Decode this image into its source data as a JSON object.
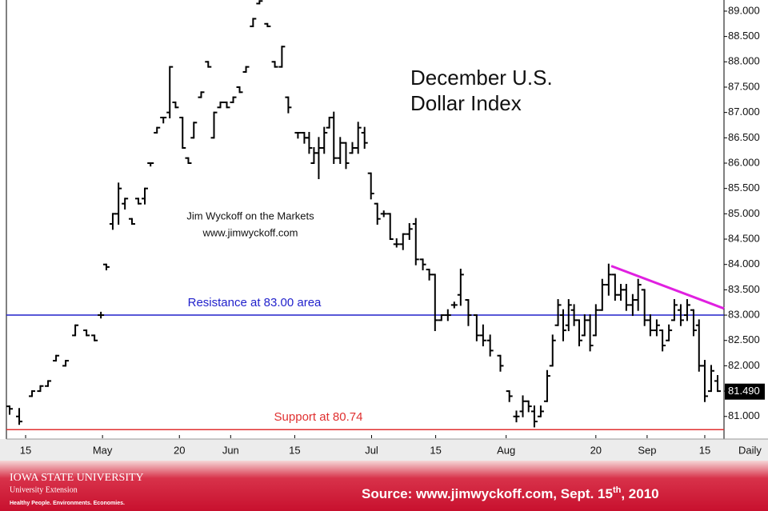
{
  "chart_data": {
    "type": "ohlc",
    "title": [
      "December U.S.",
      "Dollar Index"
    ],
    "watermark": [
      "Jim Wyckoff on the Markets",
      "www.jimwyckoff.com"
    ],
    "x_axis_label": "Daily",
    "xlim": [
      0,
      112
    ],
    "xticks": [
      {
        "value": 3,
        "label": "15"
      },
      {
        "value": 15,
        "label": "May"
      },
      {
        "value": 27,
        "label": "20"
      },
      {
        "value": 35,
        "label": "Jun"
      },
      {
        "value": 45,
        "label": "15"
      },
      {
        "value": 57,
        "label": "Jul"
      },
      {
        "value": 67,
        "label": "15"
      },
      {
        "value": 78,
        "label": "Aug"
      },
      {
        "value": 92,
        "label": "20"
      },
      {
        "value": 100,
        "label": "Sep"
      },
      {
        "value": 109,
        "label": "15"
      }
    ],
    "ylim": [
      80.57,
      89.22
    ],
    "yticks": [
      {
        "value": 81,
        "label": "81.000"
      },
      {
        "value": 81.5,
        "label": "81.500"
      },
      {
        "value": 82,
        "label": "82.000"
      },
      {
        "value": 82.5,
        "label": "82.500"
      },
      {
        "value": 83,
        "label": "83.000"
      },
      {
        "value": 83.5,
        "label": "83.500"
      },
      {
        "value": 84,
        "label": "84.000"
      },
      {
        "value": 84.5,
        "label": "84.500"
      },
      {
        "value": 85,
        "label": "85.000"
      },
      {
        "value": 85.5,
        "label": "85.500"
      },
      {
        "value": 86,
        "label": "86.000"
      },
      {
        "value": 86.5,
        "label": "86.500"
      },
      {
        "value": 87,
        "label": "87.000"
      },
      {
        "value": 87.5,
        "label": "87.500"
      },
      {
        "value": 88,
        "label": "88.000"
      },
      {
        "value": 88.5,
        "label": "88.500"
      },
      {
        "value": 89,
        "label": "89.000"
      }
    ],
    "last_price": {
      "value": 81.49,
      "label": "81.490"
    },
    "color": "#000000",
    "resistance": {
      "value": 83.0,
      "label": "Resistance at 83.00 area",
      "color": "#2222cc"
    },
    "support": {
      "value": 80.74,
      "label": "Support at 80.74",
      "color": "#e03030"
    },
    "trendline": {
      "x": [
        94.4,
        112
      ],
      "y": [
        83.97,
        83.13
      ],
      "color": "#e020e0"
    },
    "bars": [
      {
        "x": 0.5,
        "high": 81.2,
        "low": 81.05,
        "open": 81.2,
        "close": 81.15
      },
      {
        "x": 2,
        "high": 81.15,
        "low": 80.85,
        "open": 81.0,
        "close": 80.9
      },
      {
        "x": 4,
        "high": 81.5,
        "low": 81.4,
        "open": 81.4,
        "close": 81.5
      },
      {
        "x": 5.3,
        "high": 81.6,
        "low": 81.5,
        "open": 81.5,
        "close": 81.6
      },
      {
        "x": 6.5,
        "high": 81.7,
        "low": 81.6,
        "open": 81.6,
        "close": 81.7
      },
      {
        "x": 7.75,
        "high": 82.2,
        "low": 82.1,
        "open": 82.1,
        "close": 82.2
      },
      {
        "x": 9.25,
        "high": 82.1,
        "low": 82.0,
        "open": 82.0,
        "close": 82.1
      },
      {
        "x": 10.75,
        "high": 82.8,
        "low": 82.6,
        "open": 82.6,
        "close": 82.8
      },
      {
        "x": 12.5,
        "high": 82.7,
        "low": 82.6,
        "open": 82.7,
        "close": 82.6
      },
      {
        "x": 13.75,
        "high": 82.6,
        "low": 82.5,
        "open": 82.6,
        "close": 82.5
      },
      {
        "x": 14.75,
        "high": 83.05,
        "low": 82.95,
        "open": 83.0,
        "close": 83.0
      },
      {
        "x": 15.6,
        "high": 84.0,
        "low": 83.9,
        "open": 84.0,
        "close": 83.95
      },
      {
        "x": 16.6,
        "high": 85.0,
        "low": 84.7,
        "open": 84.8,
        "close": 85.0
      },
      {
        "x": 17.5,
        "high": 85.6,
        "low": 84.8,
        "open": 85.0,
        "close": 85.5
      },
      {
        "x": 18.5,
        "high": 85.3,
        "low": 85.1,
        "open": 85.2,
        "close": 85.3
      },
      {
        "x": 19.6,
        "high": 84.9,
        "low": 84.8,
        "open": 84.9,
        "close": 84.8
      },
      {
        "x": 20.6,
        "high": 85.3,
        "low": 85.2,
        "open": 85.3,
        "close": 85.2
      },
      {
        "x": 21.6,
        "high": 85.5,
        "low": 85.2,
        "open": 85.3,
        "close": 85.5
      },
      {
        "x": 22.5,
        "high": 86.0,
        "low": 85.95,
        "open": 86.0,
        "close": 86.0
      },
      {
        "x": 23.5,
        "high": 86.7,
        "low": 86.6,
        "open": 86.6,
        "close": 86.7
      },
      {
        "x": 24.5,
        "high": 86.9,
        "low": 86.8,
        "open": 86.9,
        "close": 86.9
      },
      {
        "x": 25.5,
        "high": 87.9,
        "low": 86.9,
        "open": 87.0,
        "close": 87.9
      },
      {
        "x": 26.4,
        "high": 87.2,
        "low": 87.1,
        "open": 87.2,
        "close": 87.1
      },
      {
        "x": 27.5,
        "high": 86.9,
        "low": 86.3,
        "open": 86.9,
        "close": 86.3
      },
      {
        "x": 28.4,
        "high": 86.1,
        "low": 86.0,
        "open": 86.1,
        "close": 86.0
      },
      {
        "x": 29.25,
        "high": 86.8,
        "low": 86.5,
        "open": 86.5,
        "close": 86.8
      },
      {
        "x": 30.4,
        "high": 87.4,
        "low": 87.3,
        "open": 87.3,
        "close": 87.4
      },
      {
        "x": 31.5,
        "high": 88.0,
        "low": 87.9,
        "open": 88.0,
        "close": 87.9
      },
      {
        "x": 32.4,
        "high": 87.0,
        "low": 86.5,
        "open": 86.5,
        "close": 87.0
      },
      {
        "x": 33.4,
        "high": 87.2,
        "low": 87.1,
        "open": 87.1,
        "close": 87.2
      },
      {
        "x": 34.4,
        "high": 87.2,
        "low": 87.1,
        "open": 87.2,
        "close": 87.1
      },
      {
        "x": 35.4,
        "high": 87.3,
        "low": 87.2,
        "open": 87.2,
        "close": 87.3
      },
      {
        "x": 36.4,
        "high": 87.5,
        "low": 87.4,
        "open": 87.5,
        "close": 87.4
      },
      {
        "x": 37.4,
        "high": 87.9,
        "low": 87.8,
        "open": 87.8,
        "close": 87.9
      },
      {
        "x": 38.5,
        "high": 88.85,
        "low": 88.7,
        "open": 88.7,
        "close": 88.85
      },
      {
        "x": 39.5,
        "high": 89.2,
        "low": 89.15,
        "open": 89.15,
        "close": 89.2
      },
      {
        "x": 40.75,
        "high": 88.75,
        "low": 88.7,
        "open": 88.75,
        "close": 88.7
      },
      {
        "x": 41.9,
        "high": 88.0,
        "low": 87.9,
        "open": 88.0,
        "close": 87.9
      },
      {
        "x": 43,
        "high": 88.3,
        "low": 87.9,
        "open": 87.9,
        "close": 88.3
      },
      {
        "x": 44,
        "high": 87.3,
        "low": 87.0,
        "open": 87.3,
        "close": 87.1
      },
      {
        "x": 45.5,
        "high": 86.6,
        "low": 86.5,
        "open": 86.6,
        "close": 86.6
      },
      {
        "x": 46.5,
        "high": 86.6,
        "low": 86.4,
        "open": 86.6,
        "close": 86.5
      },
      {
        "x": 47.25,
        "high": 86.6,
        "low": 86.2,
        "open": 86.5,
        "close": 86.3
      },
      {
        "x": 48,
        "high": 86.3,
        "low": 86.0,
        "open": 86.0,
        "close": 86.2
      },
      {
        "x": 48.75,
        "high": 86.5,
        "low": 85.7,
        "open": 86.2,
        "close": 86.3
      },
      {
        "x": 49.6,
        "high": 86.7,
        "low": 86.2,
        "open": 86.3,
        "close": 86.6
      },
      {
        "x": 50.4,
        "high": 86.9,
        "low": 86.7,
        "open": 86.7,
        "close": 86.9
      },
      {
        "x": 51.1,
        "high": 87.0,
        "low": 86.0,
        "open": 86.9,
        "close": 86.1
      },
      {
        "x": 52.1,
        "high": 86.5,
        "low": 86.0,
        "open": 86.1,
        "close": 86.4
      },
      {
        "x": 53,
        "high": 86.4,
        "low": 85.9,
        "open": 86.4,
        "close": 86.0
      },
      {
        "x": 54,
        "high": 86.4,
        "low": 86.2,
        "open": 86.2,
        "close": 86.3
      },
      {
        "x": 54.9,
        "high": 86.8,
        "low": 86.2,
        "open": 86.3,
        "close": 86.7
      },
      {
        "x": 55.9,
        "high": 86.7,
        "low": 86.3,
        "open": 86.6,
        "close": 86.4
      },
      {
        "x": 56.9,
        "high": 85.8,
        "low": 85.3,
        "open": 85.8,
        "close": 85.4
      },
      {
        "x": 57.9,
        "high": 85.2,
        "low": 84.8,
        "open": 85.2,
        "close": 84.9
      },
      {
        "x": 58.9,
        "high": 85.05,
        "low": 84.95,
        "open": 85.0,
        "close": 85.0
      },
      {
        "x": 59.9,
        "high": 85.0,
        "low": 84.5,
        "open": 85.0,
        "close": 84.5
      },
      {
        "x": 60.9,
        "high": 84.5,
        "low": 84.35,
        "open": 84.4,
        "close": 84.4
      },
      {
        "x": 61.9,
        "high": 84.6,
        "low": 84.3,
        "open": 84.4,
        "close": 84.6
      },
      {
        "x": 62.9,
        "high": 84.8,
        "low": 84.5,
        "open": 84.6,
        "close": 84.7
      },
      {
        "x": 63.9,
        "high": 84.9,
        "low": 84.0,
        "open": 84.8,
        "close": 84.1
      },
      {
        "x": 65,
        "high": 84.1,
        "low": 83.9,
        "open": 84.1,
        "close": 84.0
      },
      {
        "x": 66,
        "high": 83.9,
        "low": 83.7,
        "open": 83.9,
        "close": 83.8
      },
      {
        "x": 66.9,
        "high": 83.8,
        "low": 82.7,
        "open": 83.8,
        "close": 82.9
      },
      {
        "x": 67.9,
        "high": 83.0,
        "low": 82.9,
        "open": 82.9,
        "close": 83.0
      },
      {
        "x": 68.9,
        "high": 83.1,
        "low": 82.9,
        "open": 83.0,
        "close": 83.0
      },
      {
        "x": 69.9,
        "high": 83.25,
        "low": 83.15,
        "open": 83.2,
        "close": 83.2
      },
      {
        "x": 70.9,
        "high": 83.9,
        "low": 83.2,
        "open": 83.4,
        "close": 83.8
      },
      {
        "x": 72.1,
        "high": 83.3,
        "low": 82.8,
        "open": 83.3,
        "close": 83.0
      },
      {
        "x": 73.4,
        "high": 83.0,
        "low": 82.5,
        "open": 83.0,
        "close": 82.6
      },
      {
        "x": 74.4,
        "high": 82.8,
        "low": 82.4,
        "open": 82.6,
        "close": 82.5
      },
      {
        "x": 75.5,
        "high": 82.6,
        "low": 82.2,
        "open": 82.5,
        "close": 82.3
      },
      {
        "x": 77.1,
        "high": 82.2,
        "low": 81.9,
        "open": 82.2,
        "close": 82.0
      },
      {
        "x": 78.5,
        "high": 81.5,
        "low": 81.3,
        "open": 81.5,
        "close": 81.4
      },
      {
        "x": 79.6,
        "high": 81.1,
        "low": 80.9,
        "open": 81.0,
        "close": 81.0
      },
      {
        "x": 80.6,
        "high": 81.4,
        "low": 81.0,
        "open": 81.1,
        "close": 81.3
      },
      {
        "x": 81.5,
        "high": 81.3,
        "low": 81.1,
        "open": 81.3,
        "close": 81.2
      },
      {
        "x": 82.4,
        "high": 81.2,
        "low": 80.8,
        "open": 81.1,
        "close": 80.9
      },
      {
        "x": 83.4,
        "high": 81.2,
        "low": 81.0,
        "open": 81.0,
        "close": 81.1
      },
      {
        "x": 84.4,
        "high": 81.9,
        "low": 81.3,
        "open": 81.3,
        "close": 81.8
      },
      {
        "x": 85.25,
        "high": 82.6,
        "low": 82.0,
        "open": 82.0,
        "close": 82.5
      },
      {
        "x": 86.1,
        "high": 83.3,
        "low": 82.8,
        "open": 82.8,
        "close": 83.2
      },
      {
        "x": 86.9,
        "high": 83.1,
        "low": 82.5,
        "open": 83.0,
        "close": 82.7
      },
      {
        "x": 87.75,
        "high": 83.3,
        "low": 82.7,
        "open": 82.8,
        "close": 83.2
      },
      {
        "x": 88.6,
        "high": 83.2,
        "low": 82.8,
        "open": 83.1,
        "close": 82.9
      },
      {
        "x": 89.4,
        "high": 82.9,
        "low": 82.4,
        "open": 82.9,
        "close": 82.5
      },
      {
        "x": 90.25,
        "high": 83.0,
        "low": 82.6,
        "open": 82.6,
        "close": 82.9
      },
      {
        "x": 91.1,
        "high": 83.0,
        "low": 82.3,
        "open": 82.9,
        "close": 82.4
      },
      {
        "x": 92,
        "high": 83.2,
        "low": 82.6,
        "open": 82.6,
        "close": 83.1
      },
      {
        "x": 93,
        "high": 83.7,
        "low": 83.1,
        "open": 83.1,
        "close": 83.6
      },
      {
        "x": 94,
        "high": 84.0,
        "low": 83.4,
        "open": 83.6,
        "close": 83.8
      },
      {
        "x": 95,
        "high": 83.8,
        "low": 83.3,
        "open": 83.8,
        "close": 83.4
      },
      {
        "x": 95.9,
        "high": 83.6,
        "low": 83.3,
        "open": 83.4,
        "close": 83.5
      },
      {
        "x": 96.75,
        "high": 83.6,
        "low": 83.1,
        "open": 83.5,
        "close": 83.2
      },
      {
        "x": 97.75,
        "high": 83.4,
        "low": 83.0,
        "open": 83.2,
        "close": 83.3
      },
      {
        "x": 98.6,
        "high": 83.7,
        "low": 83.1,
        "open": 83.3,
        "close": 83.6
      },
      {
        "x": 99.6,
        "high": 83.5,
        "low": 82.8,
        "open": 83.5,
        "close": 82.9
      },
      {
        "x": 100.5,
        "high": 83.0,
        "low": 82.6,
        "open": 82.9,
        "close": 82.7
      },
      {
        "x": 101.5,
        "high": 82.9,
        "low": 82.6,
        "open": 82.7,
        "close": 82.8
      },
      {
        "x": 102.4,
        "high": 82.7,
        "low": 82.3,
        "open": 82.7,
        "close": 82.4
      },
      {
        "x": 103.4,
        "high": 82.8,
        "low": 82.5,
        "open": 82.5,
        "close": 82.7
      },
      {
        "x": 104.25,
        "high": 83.3,
        "low": 82.9,
        "open": 82.9,
        "close": 83.2
      },
      {
        "x": 105.25,
        "high": 83.2,
        "low": 82.8,
        "open": 83.1,
        "close": 82.9
      },
      {
        "x": 106.25,
        "high": 83.3,
        "low": 82.9,
        "open": 83.0,
        "close": 83.2
      },
      {
        "x": 107.25,
        "high": 83.1,
        "low": 82.6,
        "open": 83.1,
        "close": 82.7
      },
      {
        "x": 108.1,
        "high": 82.9,
        "low": 81.9,
        "open": 82.8,
        "close": 82.0
      },
      {
        "x": 109,
        "high": 82.1,
        "low": 81.3,
        "open": 82.0,
        "close": 81.4
      },
      {
        "x": 110,
        "high": 82.0,
        "low": 81.5,
        "open": 81.5,
        "close": 81.9
      },
      {
        "x": 111,
        "high": 81.8,
        "low": 81.5,
        "open": 81.7,
        "close": 81.5
      }
    ]
  },
  "footer": {
    "logo": "Iowa State University",
    "unit": "University Extension",
    "tagline": "Healthy People. Environments. Economies.",
    "source": [
      "Source:  www.jimwyckoff.com, Sept. 15",
      "th",
      ", 2010"
    ]
  }
}
